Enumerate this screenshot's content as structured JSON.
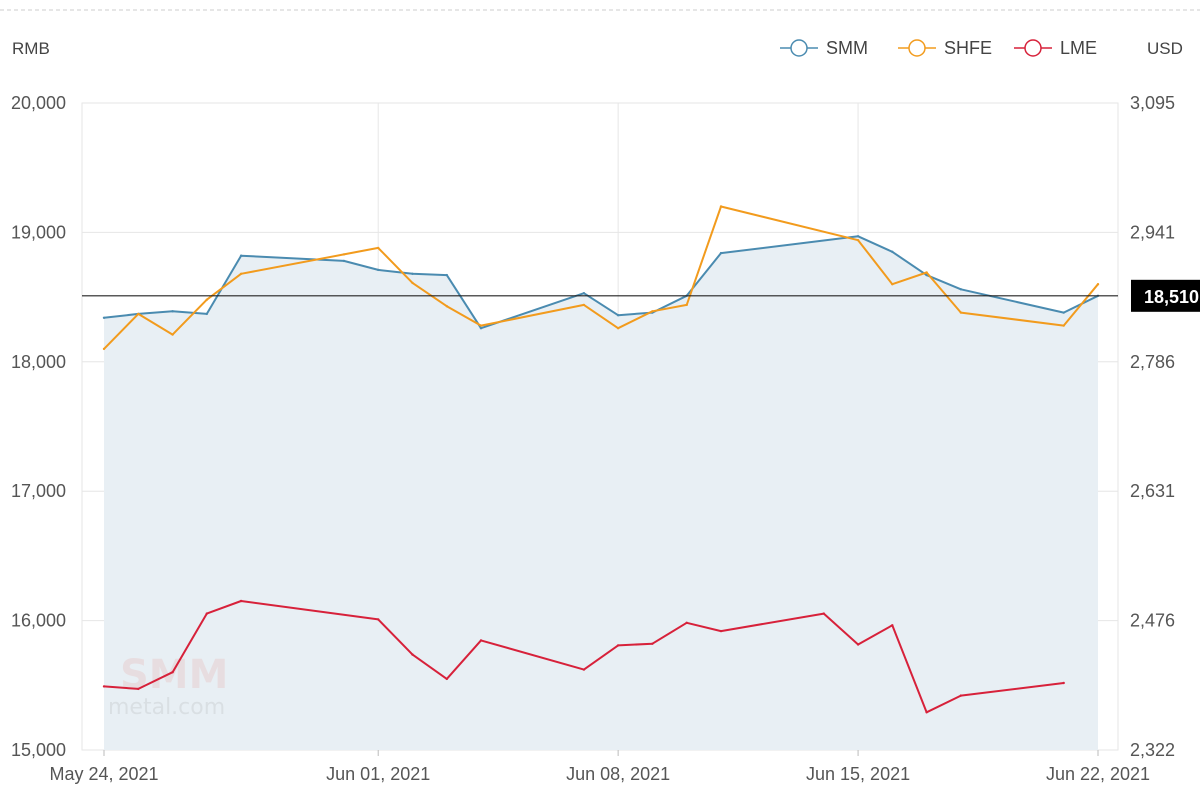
{
  "colors": {
    "smm": "#4a8bb0",
    "shfe": "#f29b1d",
    "lme": "#d7213a",
    "area_fill": "#e8eff4",
    "grid": "#e6e6e6",
    "reference_line": "#222222",
    "marker_bg": "#000000"
  },
  "watermark": {
    "logo": "SMM",
    "site": "metal.com"
  },
  "chart_data": {
    "type": "line",
    "left_unit": "RMB",
    "right_unit": "USD",
    "y_left_range": [
      15000,
      20000
    ],
    "y_right_range": [
      2322,
      3095
    ],
    "y_left_ticks": [
      "20,000",
      "19,000",
      "18,000",
      "17,000",
      "16,000",
      "15,000"
    ],
    "y_right_ticks": [
      "3,095",
      "2,941",
      "2,786",
      "2,631",
      "2,476",
      "2,322"
    ],
    "x_ticks": [
      "May 24, 2021",
      "Jun 01, 2021",
      "Jun 08, 2021",
      "Jun 15, 2021",
      "Jun 22, 2021"
    ],
    "x_range": [
      "2021-05-24",
      "2021-06-22"
    ],
    "grid": true,
    "legend_position": "top-right",
    "current_value_label": "18,510",
    "current_value": 18510,
    "series": [
      {
        "name": "SMM",
        "axis": "left",
        "area": true,
        "points": [
          [
            "2021-05-24",
            18340
          ],
          [
            "2021-05-25",
            18370
          ],
          [
            "2021-05-26",
            18390
          ],
          [
            "2021-05-27",
            18370
          ],
          [
            "2021-05-28",
            18820
          ],
          [
            "2021-05-31",
            18780
          ],
          [
            "2021-06-01",
            18710
          ],
          [
            "2021-06-02",
            18680
          ],
          [
            "2021-06-03",
            18670
          ],
          [
            "2021-06-04",
            18260
          ],
          [
            "2021-06-07",
            18530
          ],
          [
            "2021-06-08",
            18360
          ],
          [
            "2021-06-09",
            18380
          ],
          [
            "2021-06-10",
            18510
          ],
          [
            "2021-06-11",
            18840
          ],
          [
            "2021-06-15",
            18970
          ],
          [
            "2021-06-16",
            18850
          ],
          [
            "2021-06-17",
            18670
          ],
          [
            "2021-06-18",
            18560
          ],
          [
            "2021-06-21",
            18380
          ],
          [
            "2021-06-22",
            18510
          ]
        ]
      },
      {
        "name": "SHFE",
        "axis": "left",
        "area": false,
        "points": [
          [
            "2021-05-24",
            18100
          ],
          [
            "2021-05-25",
            18370
          ],
          [
            "2021-05-26",
            18210
          ],
          [
            "2021-05-27",
            18480
          ],
          [
            "2021-05-28",
            18680
          ],
          [
            "2021-05-31",
            18830
          ],
          [
            "2021-06-01",
            18880
          ],
          [
            "2021-06-02",
            18610
          ],
          [
            "2021-06-03",
            18430
          ],
          [
            "2021-06-04",
            18280
          ],
          [
            "2021-06-07",
            18440
          ],
          [
            "2021-06-08",
            18260
          ],
          [
            "2021-06-09",
            18390
          ],
          [
            "2021-06-10",
            18440
          ],
          [
            "2021-06-11",
            19200
          ],
          [
            "2021-06-15",
            18940
          ],
          [
            "2021-06-16",
            18600
          ],
          [
            "2021-06-17",
            18690
          ],
          [
            "2021-06-18",
            18380
          ],
          [
            "2021-06-21",
            18280
          ],
          [
            "2021-06-22",
            18600
          ]
        ]
      },
      {
        "name": "LME",
        "axis": "right",
        "area": false,
        "points": [
          [
            "2021-05-24",
            2398
          ],
          [
            "2021-05-25",
            2395
          ],
          [
            "2021-05-26",
            2415
          ],
          [
            "2021-05-27",
            2485
          ],
          [
            "2021-05-28",
            2500
          ],
          [
            "2021-06-01",
            2478
          ],
          [
            "2021-06-02",
            2436
          ],
          [
            "2021-06-03",
            2407
          ],
          [
            "2021-06-04",
            2453
          ],
          [
            "2021-06-07",
            2418
          ],
          [
            "2021-06-08",
            2447
          ],
          [
            "2021-06-09",
            2449
          ],
          [
            "2021-06-10",
            2474
          ],
          [
            "2021-06-11",
            2464
          ],
          [
            "2021-06-14",
            2485
          ],
          [
            "2021-06-15",
            2448
          ],
          [
            "2021-06-16",
            2471
          ],
          [
            "2021-06-17",
            2367
          ],
          [
            "2021-06-18",
            2387
          ],
          [
            "2021-06-21",
            2402
          ]
        ]
      }
    ]
  }
}
